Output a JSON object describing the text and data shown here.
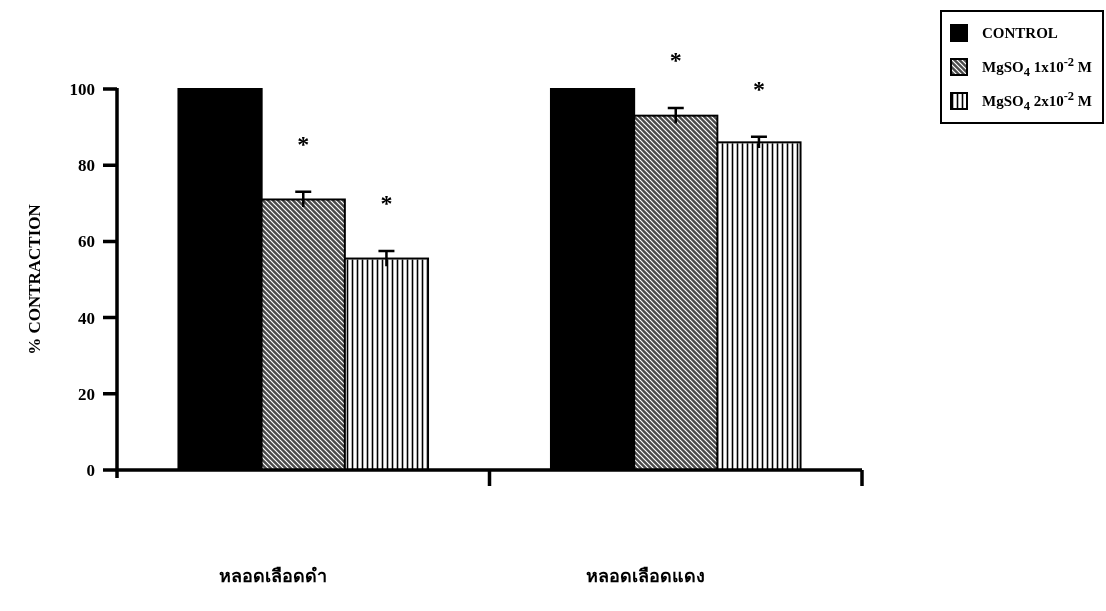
{
  "chart_data": {
    "type": "bar",
    "ylabel": "% CONTRACTION",
    "categories": [
      "หลอดเลือดดำ",
      "หลอดเลือดแดง"
    ],
    "series": [
      {
        "name": "CONTROL",
        "color": "#000000",
        "values": [
          100,
          100
        ],
        "errors": [
          null,
          null
        ]
      },
      {
        "name": "MgSO$_{4}$ 1x10$^{-2}$ M",
        "color": "#4a4a4a",
        "values": [
          71,
          93
        ],
        "errors": [
          2,
          2
        ]
      },
      {
        "name": "MgSO$_{4}$ 2x10$^{-2}$ M",
        "color": "#ffffff",
        "values": [
          55.5,
          86
        ],
        "errors": [
          2,
          1.5
        ]
      }
    ],
    "ylim": [
      0,
      100
    ],
    "yticks": [
      0,
      20,
      40,
      60,
      80,
      100
    ],
    "grid": false,
    "legend": "top right",
    "annotations": [
      "*",
      "*",
      "*",
      "*"
    ]
  }
}
